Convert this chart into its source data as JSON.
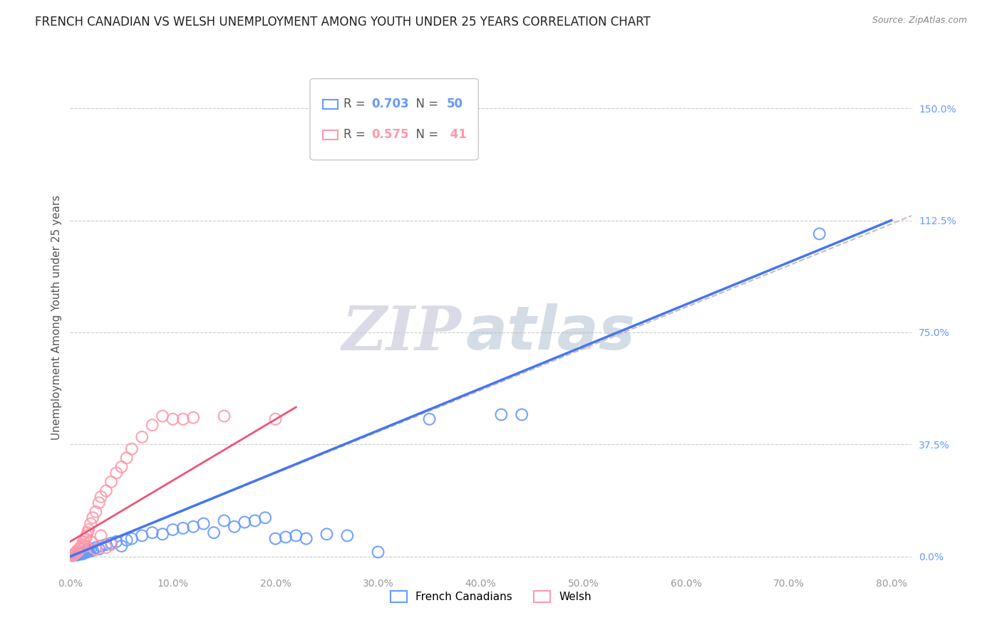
{
  "title": "FRENCH CANADIAN VS WELSH UNEMPLOYMENT AMONG YOUTH UNDER 25 YEARS CORRELATION CHART",
  "source": "Source: ZipAtlas.com",
  "ylabel": "Unemployment Among Youth under 25 years",
  "ytick_labels": [
    "0.0%",
    "37.5%",
    "75.0%",
    "112.5%",
    "150.0%"
  ],
  "ytick_values": [
    0.0,
    37.5,
    75.0,
    112.5,
    150.0
  ],
  "xtick_values": [
    0.0,
    10.0,
    20.0,
    30.0,
    40.0,
    50.0,
    60.0,
    70.0,
    80.0
  ],
  "xlim": [
    0,
    82
  ],
  "ylim": [
    -5,
    165
  ],
  "blue_color": "#6699ff",
  "pink_color": "#ff99aa",
  "reg_blue_color": "#4477ee",
  "reg_pink_color": "#ee5577",
  "dashed_color": "#ccbbbb",
  "legend_R_blue": "0.703",
  "legend_N_blue": "50",
  "legend_R_pink": "0.575",
  "legend_N_pink": " 41",
  "blue_scatter": [
    [
      0.2,
      0.3
    ],
    [
      0.3,
      0.5
    ],
    [
      0.5,
      0.8
    ],
    [
      0.6,
      1.0
    ],
    [
      0.7,
      0.5
    ],
    [
      0.8,
      0.8
    ],
    [
      0.9,
      1.0
    ],
    [
      1.0,
      1.2
    ],
    [
      1.1,
      0.8
    ],
    [
      1.2,
      1.5
    ],
    [
      1.3,
      1.0
    ],
    [
      1.5,
      1.8
    ],
    [
      1.6,
      2.0
    ],
    [
      1.7,
      1.5
    ],
    [
      1.8,
      2.2
    ],
    [
      2.0,
      2.5
    ],
    [
      2.2,
      2.0
    ],
    [
      2.5,
      3.0
    ],
    [
      2.8,
      2.5
    ],
    [
      3.0,
      3.5
    ],
    [
      3.5,
      4.0
    ],
    [
      4.0,
      4.5
    ],
    [
      4.5,
      5.0
    ],
    [
      5.0,
      3.5
    ],
    [
      5.5,
      5.5
    ],
    [
      6.0,
      6.0
    ],
    [
      7.0,
      7.0
    ],
    [
      8.0,
      8.0
    ],
    [
      9.0,
      7.5
    ],
    [
      10.0,
      9.0
    ],
    [
      11.0,
      9.5
    ],
    [
      12.0,
      10.0
    ],
    [
      13.0,
      11.0
    ],
    [
      14.0,
      8.0
    ],
    [
      15.0,
      12.0
    ],
    [
      16.0,
      10.0
    ],
    [
      17.0,
      11.5
    ],
    [
      18.0,
      12.0
    ],
    [
      19.0,
      13.0
    ],
    [
      20.0,
      6.0
    ],
    [
      21.0,
      6.5
    ],
    [
      22.0,
      7.0
    ],
    [
      23.0,
      6.0
    ],
    [
      25.0,
      7.5
    ],
    [
      27.0,
      7.0
    ],
    [
      30.0,
      1.5
    ],
    [
      35.0,
      46.0
    ],
    [
      42.0,
      47.5
    ],
    [
      44.0,
      47.5
    ],
    [
      73.0,
      108.0
    ]
  ],
  "pink_scatter": [
    [
      0.2,
      0.4
    ],
    [
      0.3,
      0.6
    ],
    [
      0.4,
      0.8
    ],
    [
      0.5,
      1.0
    ],
    [
      0.6,
      1.5
    ],
    [
      0.7,
      2.0
    ],
    [
      0.8,
      1.8
    ],
    [
      0.9,
      2.5
    ],
    [
      1.0,
      3.0
    ],
    [
      1.1,
      3.5
    ],
    [
      1.2,
      4.0
    ],
    [
      1.3,
      5.0
    ],
    [
      1.5,
      6.0
    ],
    [
      1.6,
      7.0
    ],
    [
      1.7,
      8.0
    ],
    [
      1.8,
      9.0
    ],
    [
      2.0,
      11.0
    ],
    [
      2.2,
      13.0
    ],
    [
      2.5,
      15.0
    ],
    [
      2.8,
      18.0
    ],
    [
      3.0,
      20.0
    ],
    [
      3.5,
      22.0
    ],
    [
      4.0,
      25.0
    ],
    [
      4.5,
      28.0
    ],
    [
      5.0,
      30.0
    ],
    [
      5.5,
      33.0
    ],
    [
      6.0,
      36.0
    ],
    [
      7.0,
      40.0
    ],
    [
      8.0,
      44.0
    ],
    [
      9.0,
      47.0
    ],
    [
      10.0,
      46.0
    ],
    [
      11.0,
      46.0
    ],
    [
      12.0,
      46.5
    ],
    [
      15.0,
      47.0
    ],
    [
      20.0,
      46.0
    ],
    [
      1.5,
      3.5
    ],
    [
      2.0,
      5.0
    ],
    [
      3.0,
      7.0
    ],
    [
      4.0,
      4.0
    ],
    [
      2.5,
      2.5
    ],
    [
      3.5,
      3.0
    ]
  ],
  "blue_line_x": [
    0,
    80
  ],
  "blue_line_y": [
    0,
    112.5
  ],
  "pink_line_x": [
    0,
    22
  ],
  "pink_line_y": [
    5,
    50
  ],
  "dashed_line_x": [
    0,
    115
  ],
  "dashed_line_y": [
    0,
    160
  ],
  "watermark_zip": "ZIP",
  "watermark_atlas": "atlas",
  "watermark_color": "#e8e8f0",
  "grid_color": "#cccccc",
  "title_fontsize": 12,
  "source_fontsize": 9,
  "tick_fontsize": 10,
  "legend_fontsize": 12
}
